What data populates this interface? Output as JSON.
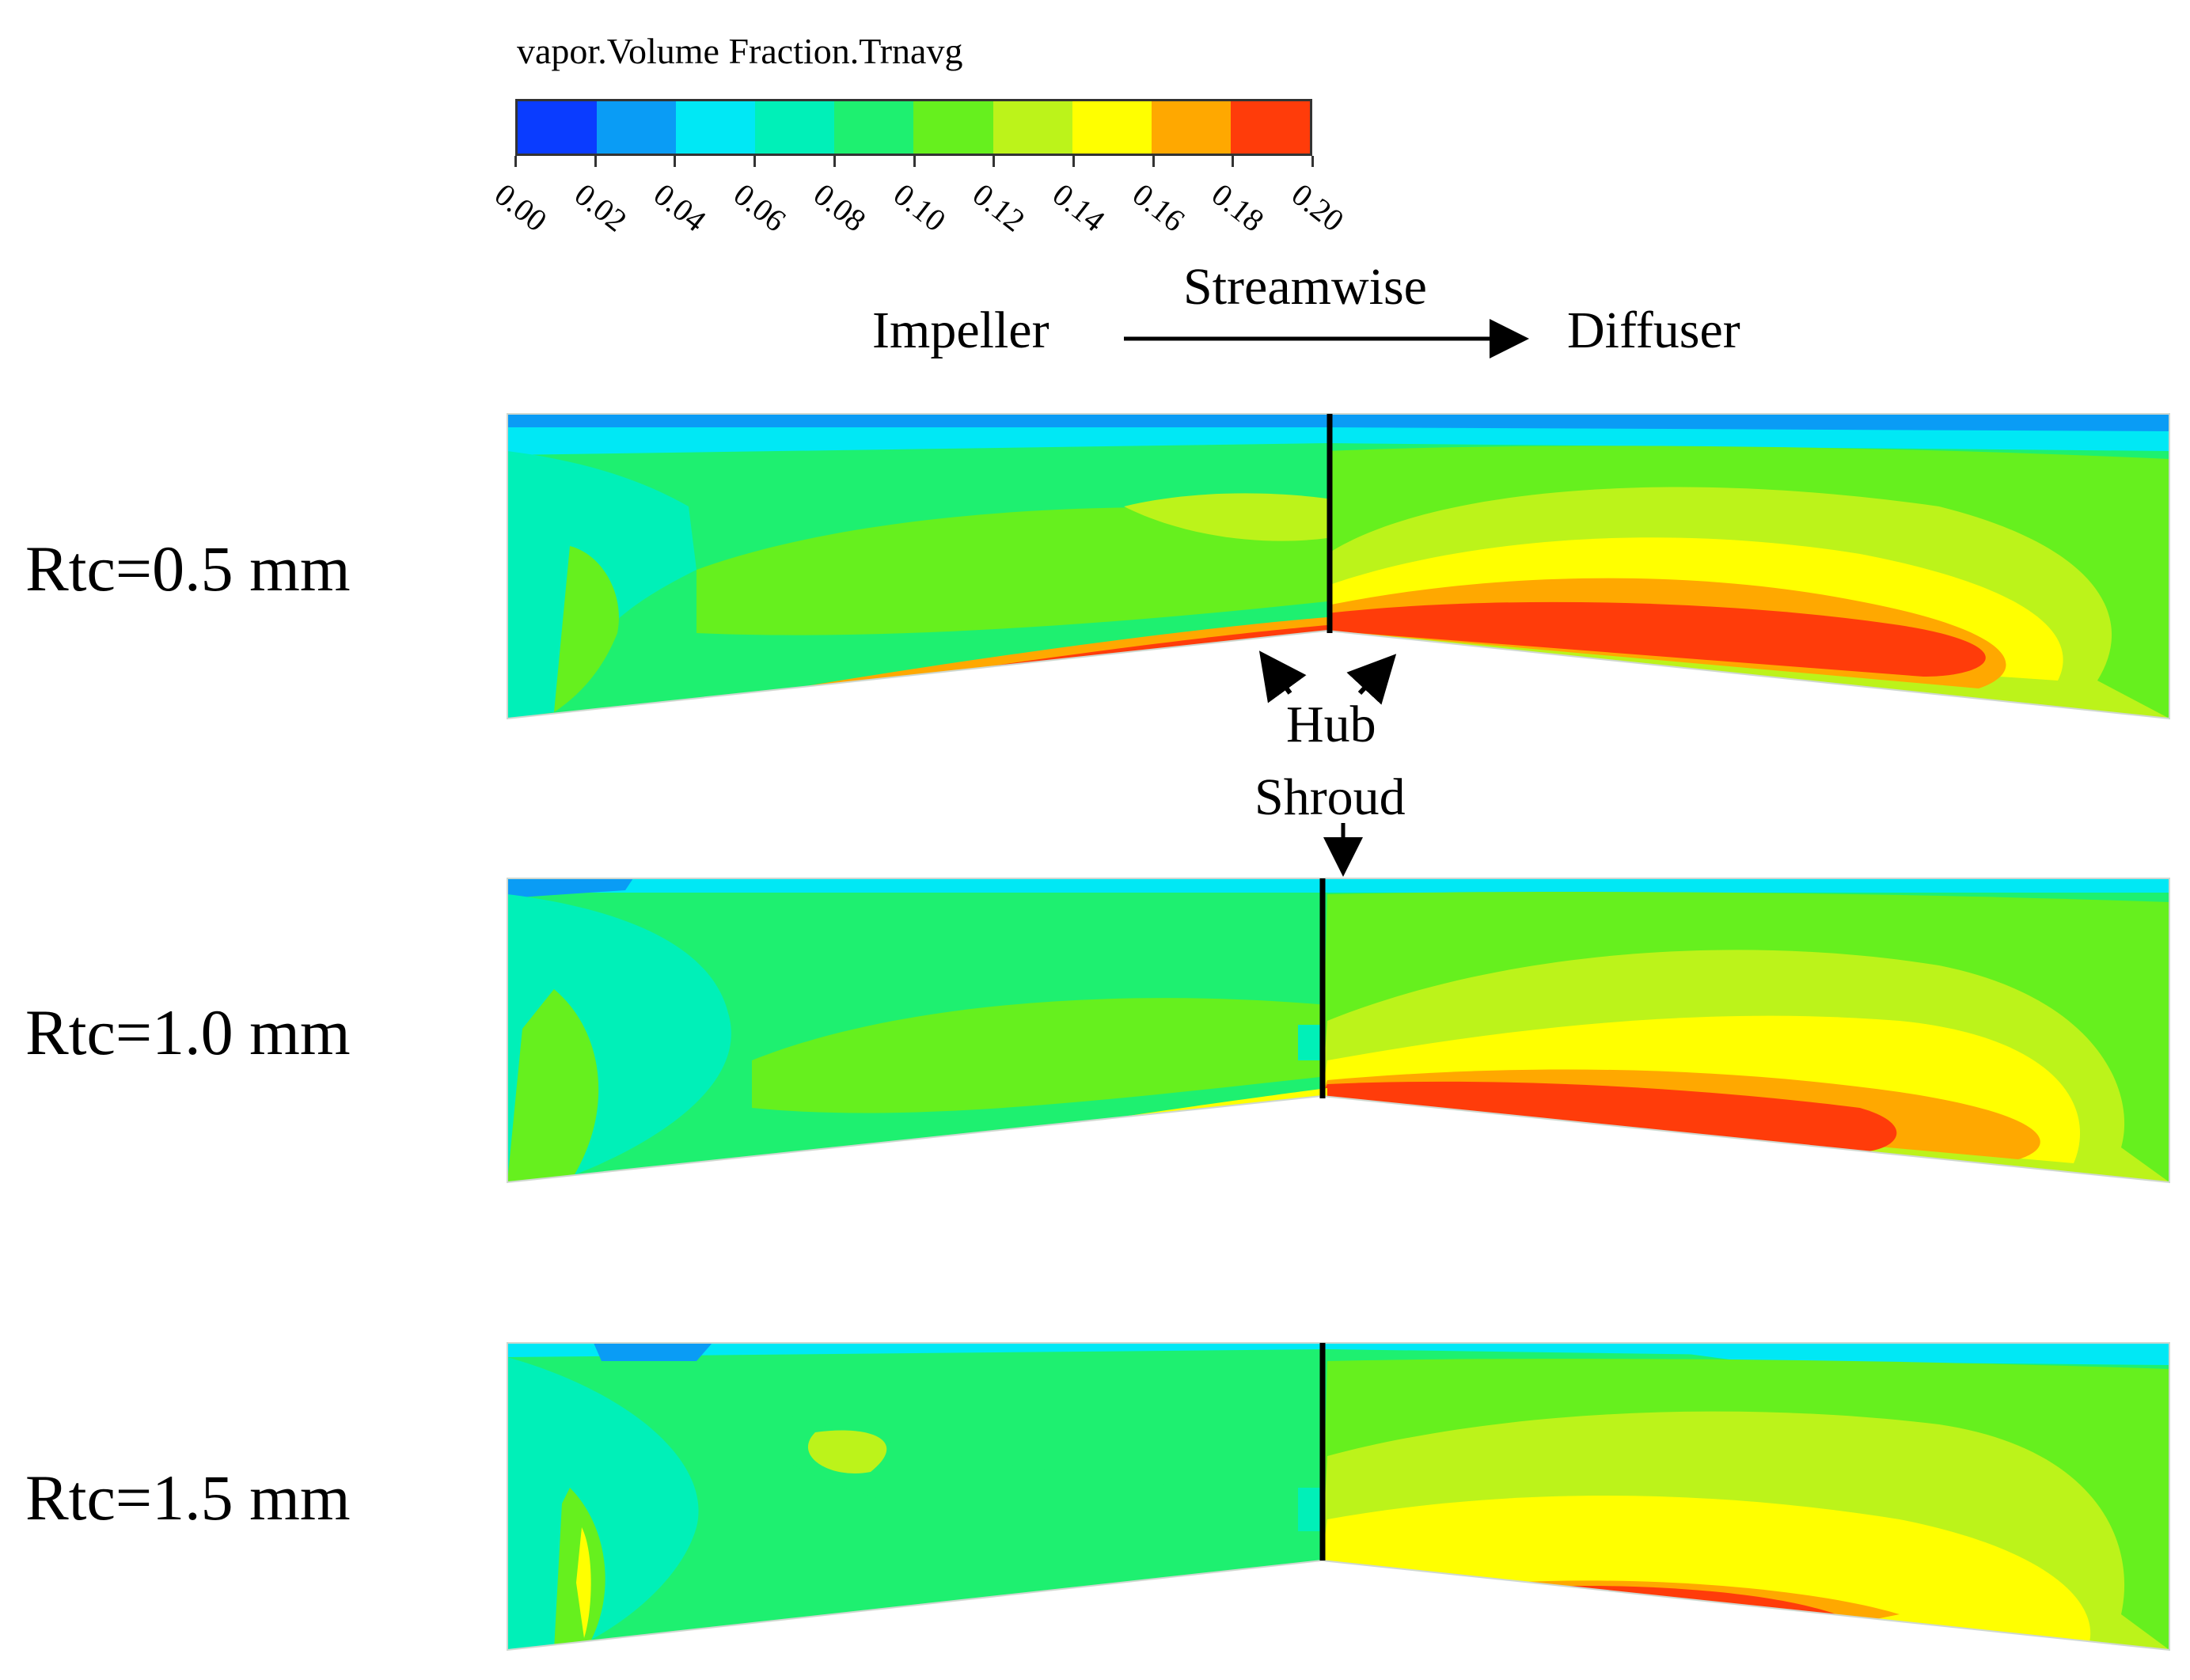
{
  "legend": {
    "title": "vapor.Volume Fraction.Trnavg",
    "colors": [
      "#0a3cff",
      "#0a9cf5",
      "#00e8f5",
      "#00f0b8",
      "#1ef070",
      "#66f01e",
      "#bcf31a",
      "#ffff00",
      "#ffa800",
      "#ff3c0a"
    ],
    "ticks": [
      "0.00",
      "0.02",
      "0.04",
      "0.06",
      "0.08",
      "0.10",
      "0.12",
      "0.14",
      "0.16",
      "0.18",
      "0.20"
    ]
  },
  "direction": {
    "left": "Impeller",
    "arrow_label": "Streamwise",
    "right": "Diffuser"
  },
  "annotations": {
    "hub": "Hub",
    "shroud": "Shroud"
  },
  "panels": [
    {
      "label": "Rtc=0.5 mm"
    },
    {
      "label": "Rtc=1.0 mm"
    },
    {
      "label": "Rtc=1.5 mm"
    }
  ]
}
